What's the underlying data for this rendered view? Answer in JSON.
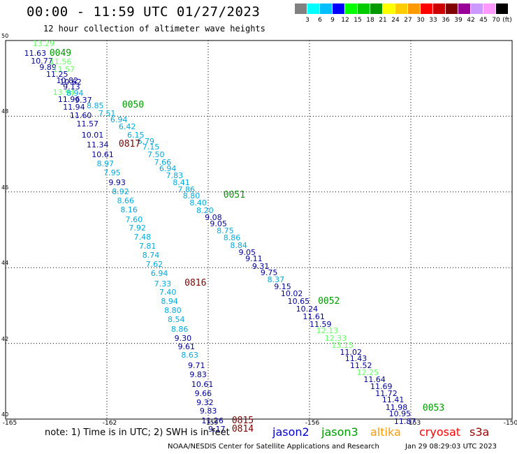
{
  "title": "00:00 - 11:59 UTC 01/27/2023",
  "subtitle": "12 hour collection of altimeter wave heights",
  "color_scale": {
    "unit": "(ft)",
    "colors": [
      "#808080",
      "#00ffff",
      "#00bfff",
      "#0000ff",
      "#00ff00",
      "#00cc00",
      "#009900",
      "#ffff00",
      "#ffcc00",
      "#ff9900",
      "#ff0000",
      "#cc0000",
      "#800000",
      "#990099",
      "#cc99ff",
      "#ff99ff",
      "#000000"
    ],
    "labels": [
      "3",
      "6",
      "9",
      "12",
      "15",
      "18",
      "21",
      "24",
      "27",
      "30",
      "33",
      "36",
      "39",
      "42",
      "45",
      "70"
    ]
  },
  "axes": {
    "lat_labels": [
      "50",
      "48",
      "46",
      "44",
      "42",
      "40"
    ],
    "lon_labels": [
      "-165",
      "-162",
      "-159",
      "-156",
      "-153",
      "-150"
    ]
  },
  "observations": [
    {
      "v": "13.29",
      "c": "#66ff66",
      "lat": 49.9,
      "lon": -164.2
    },
    {
      "v": "11.63",
      "c": "#000099",
      "lat": 49.65,
      "lon": -164.45
    },
    {
      "v": "10.77",
      "c": "#000099",
      "lat": 49.45,
      "lon": -164.25
    },
    {
      "v": "11.56",
      "c": "#66ff66",
      "lat": 49.43,
      "lon": -163.7
    },
    {
      "v": "9.89",
      "c": "#000099",
      "lat": 49.28,
      "lon": -164.0
    },
    {
      "v": "11.57",
      "c": "#66ff66",
      "lat": 49.22,
      "lon": -163.6
    },
    {
      "v": "11.25",
      "c": "#000099",
      "lat": 49.1,
      "lon": -163.8
    },
    {
      "v": "10.82",
      "c": "#000099",
      "lat": 48.93,
      "lon": -163.5
    },
    {
      "v": "10.62",
      "c": "#000099",
      "lat": 48.9,
      "lon": -163.4
    },
    {
      "v": "9.13",
      "c": "#000099",
      "lat": 48.76,
      "lon": -163.3
    },
    {
      "v": "13.94",
      "c": "#66ff66",
      "lat": 48.62,
      "lon": -163.6
    },
    {
      "v": "8.94",
      "c": "#00aadd",
      "lat": 48.6,
      "lon": -163.2
    },
    {
      "v": "11.96",
      "c": "#000099",
      "lat": 48.44,
      "lon": -163.45
    },
    {
      "v": "9.37",
      "c": "#000099",
      "lat": 48.42,
      "lon": -162.95
    },
    {
      "v": "8.85",
      "c": "#00aadd",
      "lat": 48.26,
      "lon": -162.6
    },
    {
      "v": "11.94",
      "c": "#000099",
      "lat": 48.23,
      "lon": -163.3
    },
    {
      "v": "7.51",
      "c": "#00aadd",
      "lat": 48.06,
      "lon": -162.25
    },
    {
      "v": "11.60",
      "c": "#000099",
      "lat": 48.0,
      "lon": -163.1
    },
    {
      "v": "6.94",
      "c": "#00aadd",
      "lat": 47.9,
      "lon": -161.9
    },
    {
      "v": "11.57",
      "c": "#000099",
      "lat": 47.78,
      "lon": -162.9
    },
    {
      "v": "6.42",
      "c": "#00aadd",
      "lat": 47.72,
      "lon": -161.65
    },
    {
      "v": "10.01",
      "c": "#000099",
      "lat": 47.5,
      "lon": -162.75
    },
    {
      "v": "6.15",
      "c": "#00aadd",
      "lat": 47.5,
      "lon": -161.4
    },
    {
      "v": "6.79",
      "c": "#00aadd",
      "lat": 47.33,
      "lon": -161.1
    },
    {
      "v": "11.34",
      "c": "#000099",
      "lat": 47.24,
      "lon": -162.6
    },
    {
      "v": "7.15",
      "c": "#00aadd",
      "lat": 47.17,
      "lon": -160.95
    },
    {
      "v": "10.61",
      "c": "#000099",
      "lat": 46.97,
      "lon": -162.45
    },
    {
      "v": "7.50",
      "c": "#00aadd",
      "lat": 46.97,
      "lon": -160.8
    },
    {
      "v": "8.97",
      "c": "#00aadd",
      "lat": 46.73,
      "lon": -162.3
    },
    {
      "v": "7.66",
      "c": "#00aadd",
      "lat": 46.77,
      "lon": -160.6
    },
    {
      "v": "6.94",
      "c": "#00aadd",
      "lat": 46.6,
      "lon": -160.45
    },
    {
      "v": "7.95",
      "c": "#00aadd",
      "lat": 46.5,
      "lon": -162.1
    },
    {
      "v": "7.83",
      "c": "#00aadd",
      "lat": 46.42,
      "lon": -160.25
    },
    {
      "v": "9.93",
      "c": "#000099",
      "lat": 46.23,
      "lon": -161.95
    },
    {
      "v": "8.41",
      "c": "#00aadd",
      "lat": 46.23,
      "lon": -160.05
    },
    {
      "v": "7.86",
      "c": "#00aadd",
      "lat": 46.06,
      "lon": -159.9
    },
    {
      "v": "8.92",
      "c": "#00aadd",
      "lat": 46.0,
      "lon": -161.85
    },
    {
      "v": "8.80",
      "c": "#00aadd",
      "lat": 45.88,
      "lon": -159.75
    },
    {
      "v": "8.66",
      "c": "#00aadd",
      "lat": 45.76,
      "lon": -161.7
    },
    {
      "v": "8.40",
      "c": "#00aadd",
      "lat": 45.7,
      "lon": -159.55
    },
    {
      "v": "8.16",
      "c": "#00aadd",
      "lat": 45.52,
      "lon": -161.6
    },
    {
      "v": "8.20",
      "c": "#00aadd",
      "lat": 45.5,
      "lon": -159.35
    },
    {
      "v": "9.08",
      "c": "#000099",
      "lat": 45.32,
      "lon": -159.1
    },
    {
      "v": "7.60",
      "c": "#00aadd",
      "lat": 45.26,
      "lon": -161.45
    },
    {
      "v": "9.05",
      "c": "#000099",
      "lat": 45.14,
      "lon": -158.95
    },
    {
      "v": "7.92",
      "c": "#00aadd",
      "lat": 45.03,
      "lon": -161.35
    },
    {
      "v": "8.75",
      "c": "#00aadd",
      "lat": 44.96,
      "lon": -158.75
    },
    {
      "v": "7.48",
      "c": "#00aadd",
      "lat": 44.8,
      "lon": -161.2
    },
    {
      "v": "8.86",
      "c": "#00aadd",
      "lat": 44.77,
      "lon": -158.55
    },
    {
      "v": "7.81",
      "c": "#00aadd",
      "lat": 44.56,
      "lon": -161.05
    },
    {
      "v": "8.84",
      "c": "#00aadd",
      "lat": 44.58,
      "lon": -158.35
    },
    {
      "v": "9.05",
      "c": "#000099",
      "lat": 44.4,
      "lon": -158.1
    },
    {
      "v": "8.74",
      "c": "#00aadd",
      "lat": 44.32,
      "lon": -160.95
    },
    {
      "v": "9.11",
      "c": "#000099",
      "lat": 44.22,
      "lon": -157.9
    },
    {
      "v": "7.62",
      "c": "#00aadd",
      "lat": 44.08,
      "lon": -160.85
    },
    {
      "v": "9.31",
      "c": "#000099",
      "lat": 44.03,
      "lon": -157.7
    },
    {
      "v": "6.94",
      "c": "#00aadd",
      "lat": 43.83,
      "lon": -160.7
    },
    {
      "v": "9.75",
      "c": "#000099",
      "lat": 43.85,
      "lon": -157.45
    },
    {
      "v": "8.37",
      "c": "#00aadd",
      "lat": 43.67,
      "lon": -157.25
    },
    {
      "v": "7.33",
      "c": "#00aadd",
      "lat": 43.57,
      "lon": -160.6
    },
    {
      "v": "9.15",
      "c": "#000099",
      "lat": 43.48,
      "lon": -157.05
    },
    {
      "v": "7.40",
      "c": "#00aadd",
      "lat": 43.34,
      "lon": -160.45
    },
    {
      "v": "10.02",
      "c": "#000099",
      "lat": 43.3,
      "lon": -156.85
    },
    {
      "v": "8.94",
      "c": "#00aadd",
      "lat": 43.1,
      "lon": -160.4
    },
    {
      "v": "10.65",
      "c": "#000099",
      "lat": 43.1,
      "lon": -156.65
    },
    {
      "v": "10.24",
      "c": "#000099",
      "lat": 42.9,
      "lon": -156.4
    },
    {
      "v": "8.80",
      "c": "#00aadd",
      "lat": 42.86,
      "lon": -160.3
    },
    {
      "v": "11.61",
      "c": "#000099",
      "lat": 42.7,
      "lon": -156.2
    },
    {
      "v": "8.54",
      "c": "#00aadd",
      "lat": 42.62,
      "lon": -160.2
    },
    {
      "v": "11.59",
      "c": "#000099",
      "lat": 42.5,
      "lon": -156.0
    },
    {
      "v": "8.86",
      "c": "#00aadd",
      "lat": 42.37,
      "lon": -160.1
    },
    {
      "v": "12.13",
      "c": "#66ff66",
      "lat": 42.32,
      "lon": -155.8
    },
    {
      "v": "9.30",
      "c": "#000099",
      "lat": 42.13,
      "lon": -160.0
    },
    {
      "v": "12.33",
      "c": "#66ff66",
      "lat": 42.13,
      "lon": -155.55
    },
    {
      "v": "13.15",
      "c": "#66ff66",
      "lat": 41.94,
      "lon": -155.35
    },
    {
      "v": "9.61",
      "c": "#000099",
      "lat": 41.9,
      "lon": -159.9
    },
    {
      "v": "11.02",
      "c": "#000099",
      "lat": 41.76,
      "lon": -155.1
    },
    {
      "v": "8.63",
      "c": "#00aadd",
      "lat": 41.67,
      "lon": -159.8
    },
    {
      "v": "11.43",
      "c": "#000099",
      "lat": 41.58,
      "lon": -154.95
    },
    {
      "v": "9.71",
      "c": "#000099",
      "lat": 41.4,
      "lon": -159.6
    },
    {
      "v": "11.52",
      "c": "#000099",
      "lat": 41.4,
      "lon": -154.8
    },
    {
      "v": "12.25",
      "c": "#66ff66",
      "lat": 41.22,
      "lon": -154.6
    },
    {
      "v": "9.83",
      "c": "#000099",
      "lat": 41.16,
      "lon": -159.55
    },
    {
      "v": "11.64",
      "c": "#000099",
      "lat": 41.03,
      "lon": -154.4
    },
    {
      "v": "10.61",
      "c": "#000099",
      "lat": 40.9,
      "lon": -159.5
    },
    {
      "v": "11.69",
      "c": "#000099",
      "lat": 40.85,
      "lon": -154.2
    },
    {
      "v": "9.66",
      "c": "#000099",
      "lat": 40.66,
      "lon": -159.4
    },
    {
      "v": "11.72",
      "c": "#000099",
      "lat": 40.67,
      "lon": -154.05
    },
    {
      "v": "11.41",
      "c": "#000099",
      "lat": 40.5,
      "lon": -153.85
    },
    {
      "v": "9.32",
      "c": "#000099",
      "lat": 40.43,
      "lon": -159.35
    },
    {
      "v": "11.98",
      "c": "#000099",
      "lat": 40.3,
      "lon": -153.75
    },
    {
      "v": "9.83",
      "c": "#000099",
      "lat": 40.2,
      "lon": -159.25
    },
    {
      "v": "10.95",
      "c": "#000099",
      "lat": 40.12,
      "lon": -153.65
    },
    {
      "v": "11.26",
      "c": "#000099",
      "lat": 39.95,
      "lon": -159.2
    },
    {
      "v": "11.87",
      "c": "#000099",
      "lat": 39.93,
      "lon": -153.5
    },
    {
      "v": "9.17",
      "c": "#000099",
      "lat": 39.72,
      "lon": -159.0
    }
  ],
  "pass_labels": [
    {
      "t": "0049",
      "c": "#009900",
      "lat": 49.65,
      "lon": -163.7
    },
    {
      "t": "0050",
      "c": "#009900",
      "lat": 48.28,
      "lon": -161.55
    },
    {
      "t": "0817",
      "c": "#800000",
      "lat": 47.25,
      "lon": -161.65
    },
    {
      "t": "0051",
      "c": "#009900",
      "lat": 45.9,
      "lon": -158.55
    },
    {
      "t": "0816",
      "c": "#800000",
      "lat": 43.58,
      "lon": -159.7
    },
    {
      "t": "0052",
      "c": "#009900",
      "lat": 43.1,
      "lon": -155.75
    },
    {
      "t": "0815",
      "c": "#800000",
      "lat": 39.95,
      "lon": -158.3
    },
    {
      "t": "0814",
      "c": "#800000",
      "lat": 39.73,
      "lon": -158.3
    },
    {
      "t": "0053",
      "c": "#009900",
      "lat": 40.28,
      "lon": -152.65
    }
  ],
  "note": "note: 1) Time is in UTC; 2) SWH is in feet",
  "satellites": [
    {
      "name": "jason2",
      "color": "#0000cc"
    },
    {
      "name": "jason3",
      "color": "#009900"
    },
    {
      "name": "altika",
      "color": "#ff9900"
    },
    {
      "name": "cryosat",
      "color": "#ff0000"
    },
    {
      "name": "s3a",
      "color": "#990000"
    }
  ],
  "footer_left": "NOAA/NESDIS Center for Satellite Applications and Research",
  "footer_right": "Jan 29 08:29:03 UTC 2023"
}
